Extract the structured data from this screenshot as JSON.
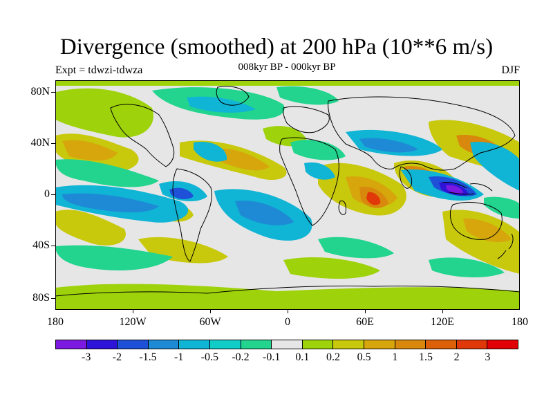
{
  "header": {
    "title": "Divergence (smoothed) at 200 hPa (10**6 m/s)",
    "subtitle": "008kyr BP - 000kyr BP",
    "left_label": "Expt = tdwzi-tdwza",
    "right_label": "DJF"
  },
  "map": {
    "type": "filled-contour-world-map",
    "lat_ticks": [
      "80N",
      "40N",
      "0",
      "40S",
      "80S"
    ],
    "lon_ticks": [
      "180",
      "120W",
      "60W",
      "0",
      "60E",
      "120E",
      "180"
    ],
    "background_color": "#e6e6e6",
    "coastline_color": "#000000"
  },
  "colorbar": {
    "labels": [
      "-3",
      "-2",
      "-1.5",
      "-1",
      "-0.5",
      "-0.2",
      "-0.1",
      "0.1",
      "0.2",
      "0.5",
      "1",
      "1.5",
      "2",
      "3"
    ],
    "colors": [
      "#7c19e0",
      "#2d14d8",
      "#1e50d8",
      "#1e8ad6",
      "#10b4d4",
      "#12ccc8",
      "#22d48e",
      "#e6e6e6",
      "#9ed20a",
      "#c8c80c",
      "#d6a60c",
      "#d8880c",
      "#dc6008",
      "#e03808",
      "#e00006"
    ]
  }
}
